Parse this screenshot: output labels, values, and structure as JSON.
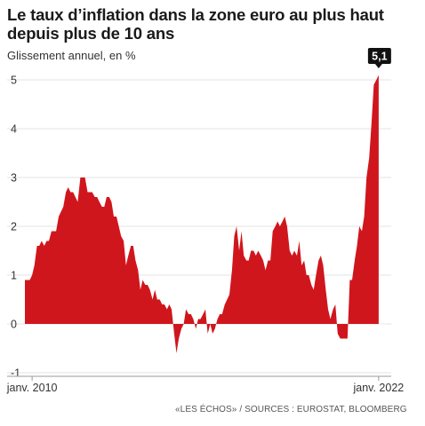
{
  "chart_data": {
    "type": "area",
    "title": "Le taux d’inflation dans la zone euro au plus haut depuis plus de 10 ans",
    "subtitle": "Glissement annuel, en %",
    "source": "«LES ÉCHOS» / SOURCES : EUROSTAT, BLOOMBERG",
    "yticks": [
      "-1",
      "0",
      "1",
      "2",
      "3",
      "4",
      "5"
    ],
    "ylim": [
      -1,
      5.2
    ],
    "xlim": [
      2009.75,
      2022.25
    ],
    "xticks": [
      {
        "label": "janv. 2010",
        "value": 2010.0
      },
      {
        "label": "janv. 2022",
        "value": 2022.0
      }
    ],
    "grid": true,
    "color": "#d0161d",
    "callout": {
      "label": "5,1",
      "x": 2022.0,
      "y": 5.1
    },
    "series": [
      {
        "x": [
          2009.75,
          2009.83,
          2009.92,
          2010.0,
          2010.08,
          2010.17,
          2010.25,
          2010.33,
          2010.42,
          2010.5,
          2010.58,
          2010.67,
          2010.75,
          2010.83,
          2010.92,
          2011.0,
          2011.08,
          2011.17,
          2011.25,
          2011.33,
          2011.42,
          2011.5,
          2011.58,
          2011.67,
          2011.75,
          2011.83,
          2011.92,
          2012.0,
          2012.08,
          2012.17,
          2012.25,
          2012.33,
          2012.42,
          2012.5,
          2012.58,
          2012.67,
          2012.75,
          2012.83,
          2012.92,
          2013.0,
          2013.08,
          2013.17,
          2013.25,
          2013.33,
          2013.42,
          2013.5,
          2013.58,
          2013.67,
          2013.75,
          2013.83,
          2013.92,
          2014.0,
          2014.08,
          2014.17,
          2014.25,
          2014.33,
          2014.42,
          2014.5,
          2014.58,
          2014.67,
          2014.75,
          2014.83,
          2014.92,
          2015.0,
          2015.08,
          2015.17,
          2015.25,
          2015.33,
          2015.42,
          2015.5,
          2015.58,
          2015.67,
          2015.75,
          2015.83,
          2015.92,
          2016.0,
          2016.08,
          2016.17,
          2016.25,
          2016.33,
          2016.42,
          2016.5,
          2016.58,
          2016.67,
          2016.75,
          2016.83,
          2016.92,
          2017.0,
          2017.08,
          2017.17,
          2017.25,
          2017.33,
          2017.42,
          2017.5,
          2017.58,
          2017.67,
          2017.75,
          2017.83,
          2017.92,
          2018.0,
          2018.08,
          2018.17,
          2018.25,
          2018.33,
          2018.42,
          2018.5,
          2018.58,
          2018.67,
          2018.75,
          2018.83,
          2018.92,
          2019.0,
          2019.08,
          2019.17,
          2019.25,
          2019.33,
          2019.42,
          2019.5,
          2019.58,
          2019.67,
          2019.75,
          2019.83,
          2019.92,
          2020.0,
          2020.08,
          2020.17,
          2020.25,
          2020.33,
          2020.42,
          2020.5,
          2020.58,
          2020.67,
          2020.75,
          2020.83,
          2020.92,
          2021.0,
          2021.08,
          2021.17,
          2021.25,
          2021.33,
          2021.42,
          2021.5,
          2021.58,
          2021.67,
          2021.75,
          2021.83,
          2021.92,
          2022.0
        ],
        "values": [
          0.9,
          0.9,
          0.9,
          1.0,
          1.2,
          1.6,
          1.6,
          1.7,
          1.6,
          1.7,
          1.7,
          1.9,
          1.9,
          1.9,
          2.2,
          2.3,
          2.4,
          2.7,
          2.8,
          2.7,
          2.7,
          2.6,
          2.5,
          3.0,
          3.0,
          3.0,
          2.7,
          2.7,
          2.7,
          2.6,
          2.6,
          2.5,
          2.4,
          2.4,
          2.6,
          2.6,
          2.5,
          2.2,
          2.2,
          2.0,
          1.8,
          1.7,
          1.2,
          1.4,
          1.6,
          1.6,
          1.3,
          1.1,
          0.7,
          0.9,
          0.8,
          0.8,
          0.7,
          0.5,
          0.7,
          0.5,
          0.5,
          0.4,
          0.4,
          0.3,
          0.4,
          0.3,
          -0.2,
          -0.6,
          -0.3,
          -0.1,
          0.0,
          0.3,
          0.2,
          0.2,
          0.1,
          -0.1,
          0.1,
          0.1,
          0.2,
          0.3,
          -0.2,
          0.0,
          -0.2,
          -0.1,
          0.1,
          0.2,
          0.2,
          0.4,
          0.5,
          0.6,
          1.1,
          1.8,
          2.0,
          1.5,
          1.9,
          1.4,
          1.3,
          1.3,
          1.5,
          1.5,
          1.4,
          1.5,
          1.4,
          1.3,
          1.1,
          1.3,
          1.3,
          1.9,
          2.0,
          2.1,
          2.0,
          2.1,
          2.2,
          2.0,
          1.5,
          1.4,
          1.5,
          1.4,
          1.7,
          1.2,
          1.3,
          1.0,
          1.0,
          0.8,
          0.7,
          1.0,
          1.3,
          1.4,
          1.2,
          0.7,
          0.3,
          0.1,
          0.3,
          0.4,
          -0.2,
          -0.3,
          -0.3,
          -0.3,
          -0.3,
          0.9,
          0.9,
          1.3,
          1.6,
          2.0,
          1.9,
          2.2,
          3.0,
          3.4,
          4.1,
          4.9,
          5.0,
          5.1
        ]
      }
    ]
  }
}
